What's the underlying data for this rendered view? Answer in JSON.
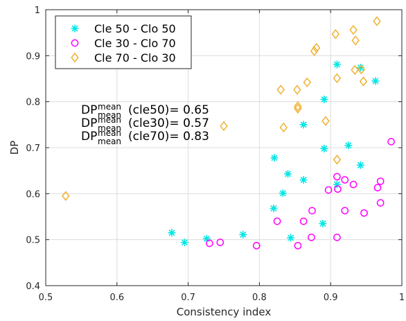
{
  "chart_data": {
    "type": "scatter",
    "title": "",
    "xlabel": "Consistency index",
    "ylabel": "DP",
    "xlim": [
      0.5,
      1
    ],
    "ylim": [
      0.4,
      1
    ],
    "x_ticks": [
      "0.5",
      "0.6",
      "0.7",
      "0.8",
      "0.9",
      "1"
    ],
    "y_ticks": [
      "0.4",
      "0.5",
      "0.6",
      "0.7",
      "0.8",
      "0.9",
      "1"
    ],
    "grid": true,
    "legend_position": "top-left",
    "series": [
      {
        "name": "Cle 50 - Clo 50",
        "marker": "asterisk",
        "color": "#00e5e5",
        "points": [
          [
            0.677,
            0.515
          ],
          [
            0.695,
            0.494
          ],
          [
            0.726,
            0.502
          ],
          [
            0.777,
            0.511
          ],
          [
            0.82,
            0.568
          ],
          [
            0.821,
            0.678
          ],
          [
            0.833,
            0.601
          ],
          [
            0.84,
            0.643
          ],
          [
            0.844,
            0.504
          ],
          [
            0.862,
            0.63
          ],
          [
            0.862,
            0.75
          ],
          [
            0.889,
            0.535
          ],
          [
            0.891,
            0.805
          ],
          [
            0.891,
            0.698
          ],
          [
            0.909,
            0.881
          ],
          [
            0.909,
            0.62
          ],
          [
            0.925,
            0.705
          ],
          [
            0.942,
            0.662
          ],
          [
            0.942,
            0.874
          ],
          [
            0.963,
            0.845
          ]
        ]
      },
      {
        "name": "Cle 30 - Clo 70",
        "marker": "circle",
        "color": "#ff00ff",
        "points": [
          [
            0.73,
            0.492
          ],
          [
            0.745,
            0.494
          ],
          [
            0.796,
            0.487
          ],
          [
            0.825,
            0.54
          ],
          [
            0.854,
            0.487
          ],
          [
            0.862,
            0.54
          ],
          [
            0.873,
            0.505
          ],
          [
            0.874,
            0.563
          ],
          [
            0.897,
            0.608
          ],
          [
            0.909,
            0.505
          ],
          [
            0.909,
            0.637
          ],
          [
            0.91,
            0.61
          ],
          [
            0.92,
            0.63
          ],
          [
            0.92,
            0.563
          ],
          [
            0.932,
            0.62
          ],
          [
            0.947,
            0.558
          ],
          [
            0.966,
            0.613
          ],
          [
            0.97,
            0.627
          ],
          [
            0.97,
            0.58
          ],
          [
            0.985,
            0.713
          ]
        ]
      },
      {
        "name": "Cle 70 - Clo 30",
        "marker": "diamond",
        "color": "#f0b030",
        "points": [
          [
            0.528,
            0.595
          ],
          [
            0.75,
            0.747
          ],
          [
            0.83,
            0.826
          ],
          [
            0.834,
            0.744
          ],
          [
            0.853,
            0.826
          ],
          [
            0.854,
            0.79
          ],
          [
            0.854,
            0.785
          ],
          [
            0.867,
            0.842
          ],
          [
            0.877,
            0.91
          ],
          [
            0.88,
            0.917
          ],
          [
            0.893,
            0.758
          ],
          [
            0.907,
            0.947
          ],
          [
            0.909,
            0.674
          ],
          [
            0.909,
            0.851
          ],
          [
            0.932,
            0.956
          ],
          [
            0.934,
            0.869
          ],
          [
            0.935,
            0.933
          ],
          [
            0.943,
            0.87
          ],
          [
            0.946,
            0.844
          ],
          [
            0.965,
            0.975
          ]
        ]
      }
    ],
    "annotations": [
      {
        "base": "DP",
        "sub": "mean",
        "sup": "mean",
        "rest": "(cle50)= 0.65"
      },
      {
        "base": "DP",
        "sub": "mean",
        "sup": "mean",
        "rest": "(cle30)= 0.57"
      },
      {
        "base": "DP",
        "sub": "mean",
        "sup": "mean",
        "rest": "(cle70)= 0.83"
      }
    ]
  }
}
